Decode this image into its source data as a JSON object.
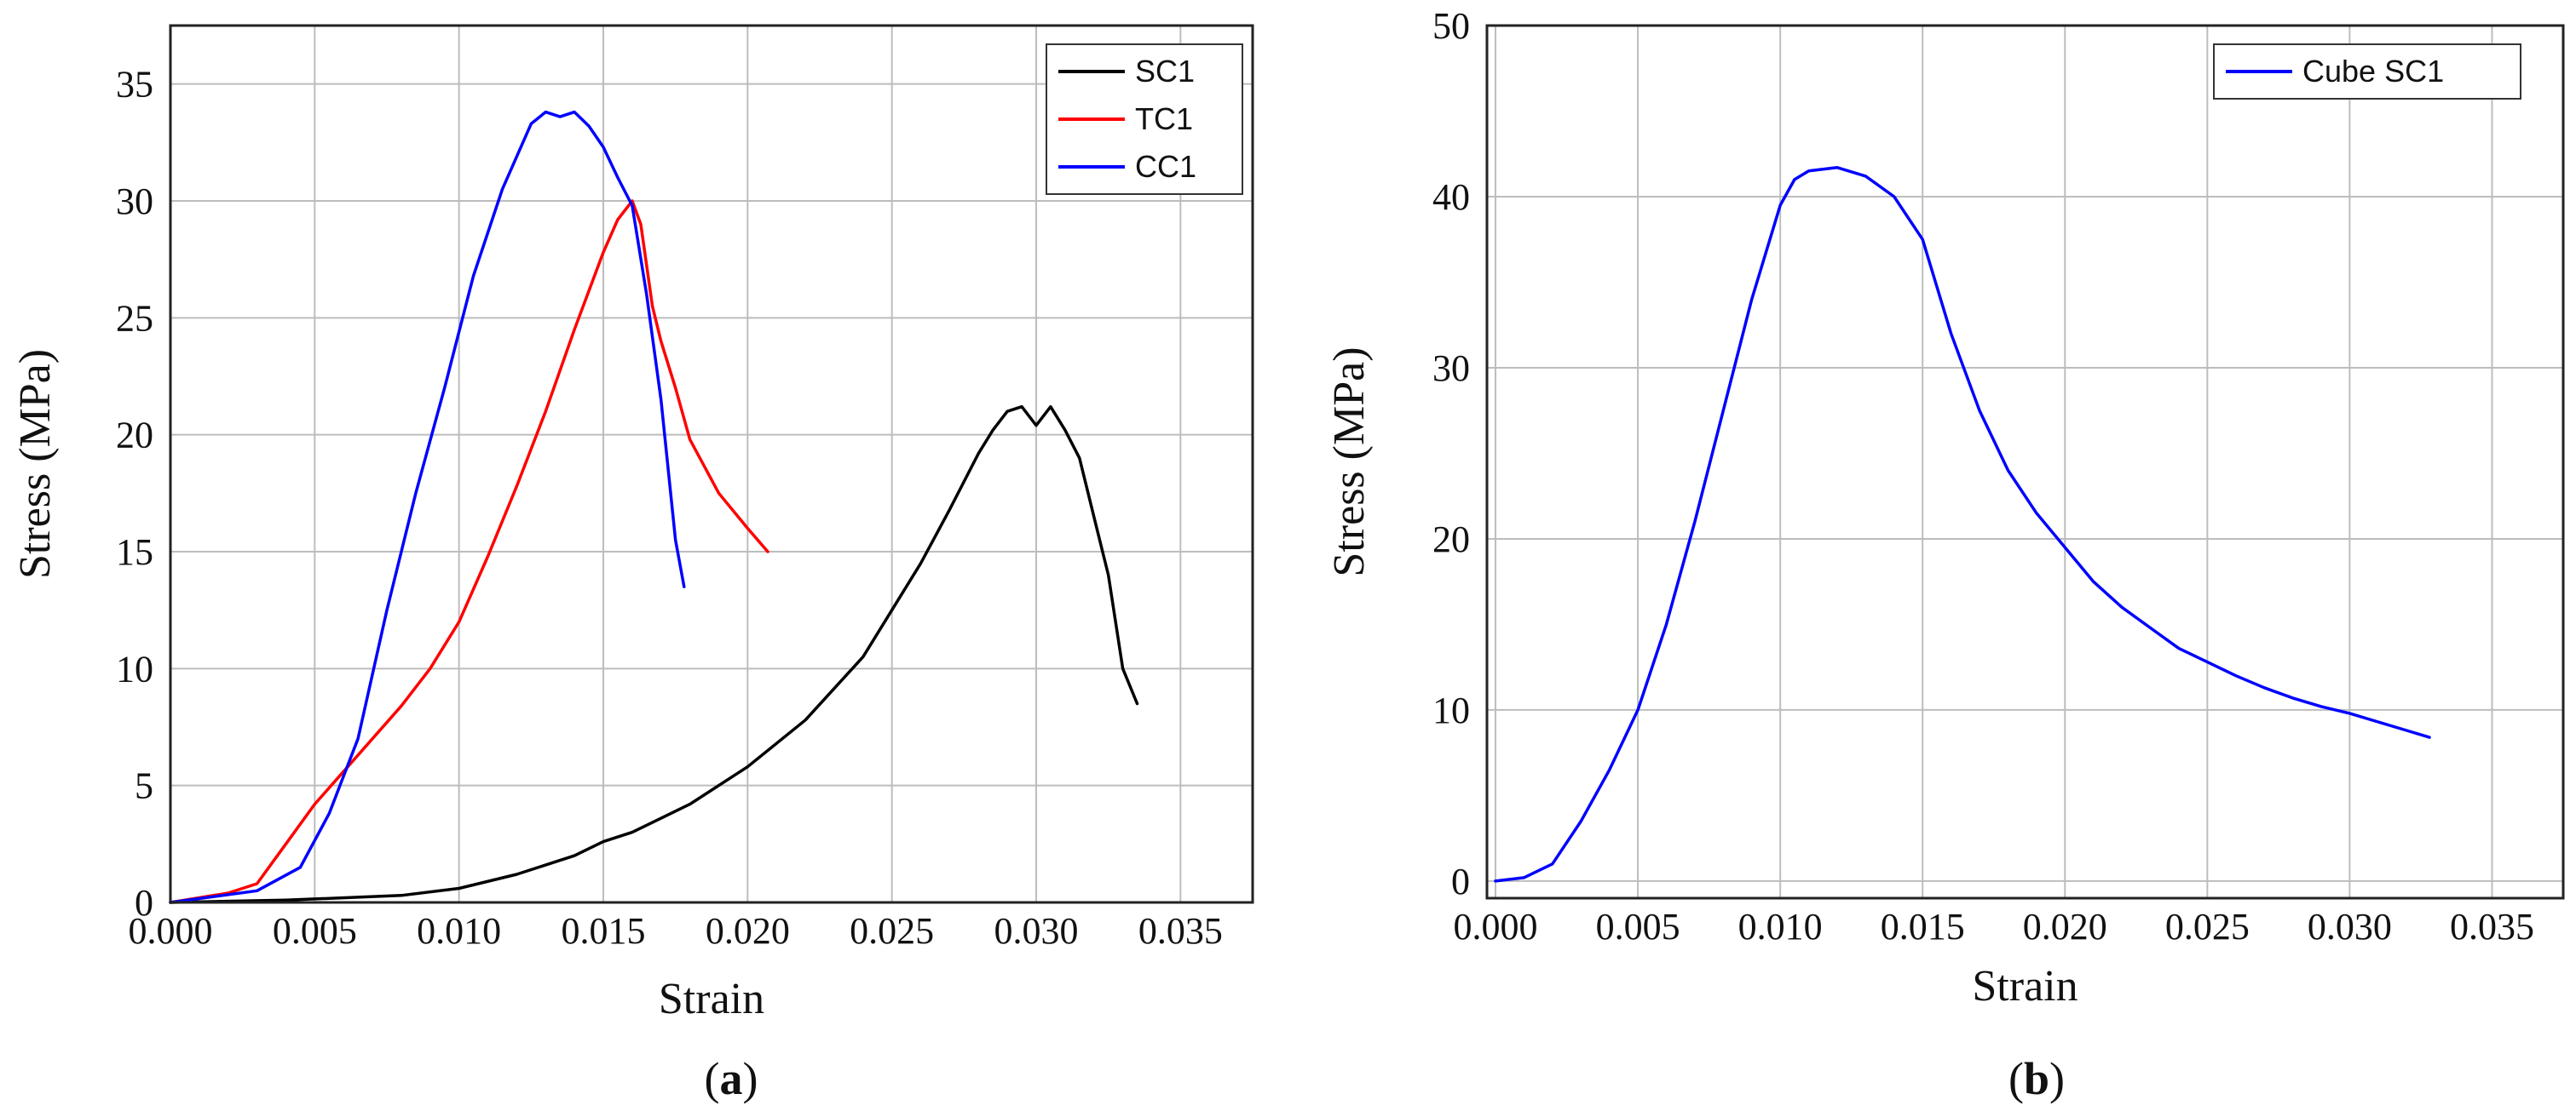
{
  "chart_data": [
    {
      "type": "line",
      "panel_label": "a",
      "xlabel": "Strain",
      "ylabel": "Stress (MPa)",
      "xlim": [
        0.0,
        0.0375
      ],
      "ylim": [
        0,
        37.5
      ],
      "xticks": [
        "0.000",
        "0.005",
        "0.010",
        "0.015",
        "0.020",
        "0.025",
        "0.030",
        "0.035"
      ],
      "xtick_values": [
        0.0,
        0.005,
        0.01,
        0.015,
        0.02,
        0.025,
        0.03,
        0.035
      ],
      "yticks": [
        "0",
        "5",
        "10",
        "15",
        "20",
        "25",
        "30",
        "35"
      ],
      "ytick_values": [
        0,
        5,
        10,
        15,
        20,
        25,
        30,
        35
      ],
      "grid": true,
      "legend_position": "top-right",
      "series": [
        {
          "name": "SC1",
          "color": "#000000",
          "x": [
            0.0,
            0.004,
            0.008,
            0.01,
            0.012,
            0.014,
            0.015,
            0.016,
            0.018,
            0.02,
            0.022,
            0.024,
            0.026,
            0.027,
            0.028,
            0.0285,
            0.029,
            0.0295,
            0.03,
            0.0305,
            0.031,
            0.0315,
            0.032,
            0.0325,
            0.033,
            0.0335
          ],
          "y": [
            0.0,
            0.1,
            0.3,
            0.6,
            1.2,
            2.0,
            2.6,
            3.0,
            4.2,
            5.8,
            7.8,
            10.5,
            14.5,
            16.8,
            19.2,
            20.2,
            21.0,
            21.2,
            20.4,
            21.2,
            20.2,
            19.0,
            16.5,
            14.0,
            10.0,
            8.5
          ]
        },
        {
          "name": "TC1",
          "color": "#ff0000",
          "x": [
            0.0,
            0.002,
            0.003,
            0.004,
            0.005,
            0.006,
            0.007,
            0.008,
            0.009,
            0.01,
            0.011,
            0.012,
            0.013,
            0.014,
            0.015,
            0.0155,
            0.016,
            0.0163,
            0.0167,
            0.017,
            0.0175,
            0.018,
            0.019,
            0.02,
            0.0207
          ],
          "y": [
            0.0,
            0.4,
            0.8,
            2.5,
            4.2,
            5.6,
            7.0,
            8.4,
            10.0,
            12.0,
            14.8,
            17.8,
            21.0,
            24.5,
            27.8,
            29.2,
            30.0,
            29.0,
            25.5,
            24.0,
            22.0,
            19.8,
            17.5,
            16.0,
            15.0
          ]
        },
        {
          "name": "CC1",
          "color": "#0000ff",
          "x": [
            0.0,
            0.003,
            0.0045,
            0.0055,
            0.0065,
            0.0075,
            0.0085,
            0.0095,
            0.0105,
            0.0115,
            0.0125,
            0.013,
            0.0135,
            0.014,
            0.0145,
            0.015,
            0.0155,
            0.016,
            0.0165,
            0.017,
            0.0175,
            0.0178
          ],
          "y": [
            0.0,
            0.5,
            1.5,
            3.8,
            7.0,
            12.5,
            17.5,
            22.0,
            26.8,
            30.5,
            33.3,
            33.8,
            33.6,
            33.8,
            33.2,
            32.3,
            31.0,
            29.8,
            26.0,
            21.5,
            15.5,
            13.5
          ]
        }
      ]
    },
    {
      "type": "line",
      "panel_label": "b",
      "xlabel": "Strain",
      "ylabel": "Stress (MPa)",
      "xlim": [
        -0.0003,
        0.0375
      ],
      "ylim": [
        -1,
        50
      ],
      "xticks": [
        "0.000",
        "0.005",
        "0.010",
        "0.015",
        "0.020",
        "0.025",
        "0.030",
        "0.035"
      ],
      "xtick_values": [
        0.0,
        0.005,
        0.01,
        0.015,
        0.02,
        0.025,
        0.03,
        0.035
      ],
      "yticks": [
        "0",
        "10",
        "20",
        "30",
        "40",
        "50"
      ],
      "ytick_values": [
        0,
        10,
        20,
        30,
        40,
        50
      ],
      "grid": true,
      "legend_position": "top-right",
      "series": [
        {
          "name": "Cube SC1",
          "color": "#0000ff",
          "x": [
            0.0,
            0.001,
            0.002,
            0.003,
            0.004,
            0.005,
            0.006,
            0.007,
            0.008,
            0.009,
            0.01,
            0.0105,
            0.011,
            0.012,
            0.013,
            0.014,
            0.015,
            0.016,
            0.017,
            0.018,
            0.019,
            0.02,
            0.021,
            0.022,
            0.023,
            0.024,
            0.025,
            0.026,
            0.027,
            0.028,
            0.029,
            0.03,
            0.031,
            0.032,
            0.0328
          ],
          "y": [
            0.0,
            0.2,
            1.0,
            3.5,
            6.5,
            10.0,
            15.0,
            21.0,
            27.5,
            34.0,
            39.5,
            41.0,
            41.5,
            41.7,
            41.2,
            40.0,
            37.5,
            32.0,
            27.5,
            24.0,
            21.5,
            19.5,
            17.5,
            16.0,
            14.8,
            13.6,
            12.8,
            12.0,
            11.3,
            10.7,
            10.2,
            9.8,
            9.3,
            8.8,
            8.4
          ]
        }
      ]
    }
  ]
}
